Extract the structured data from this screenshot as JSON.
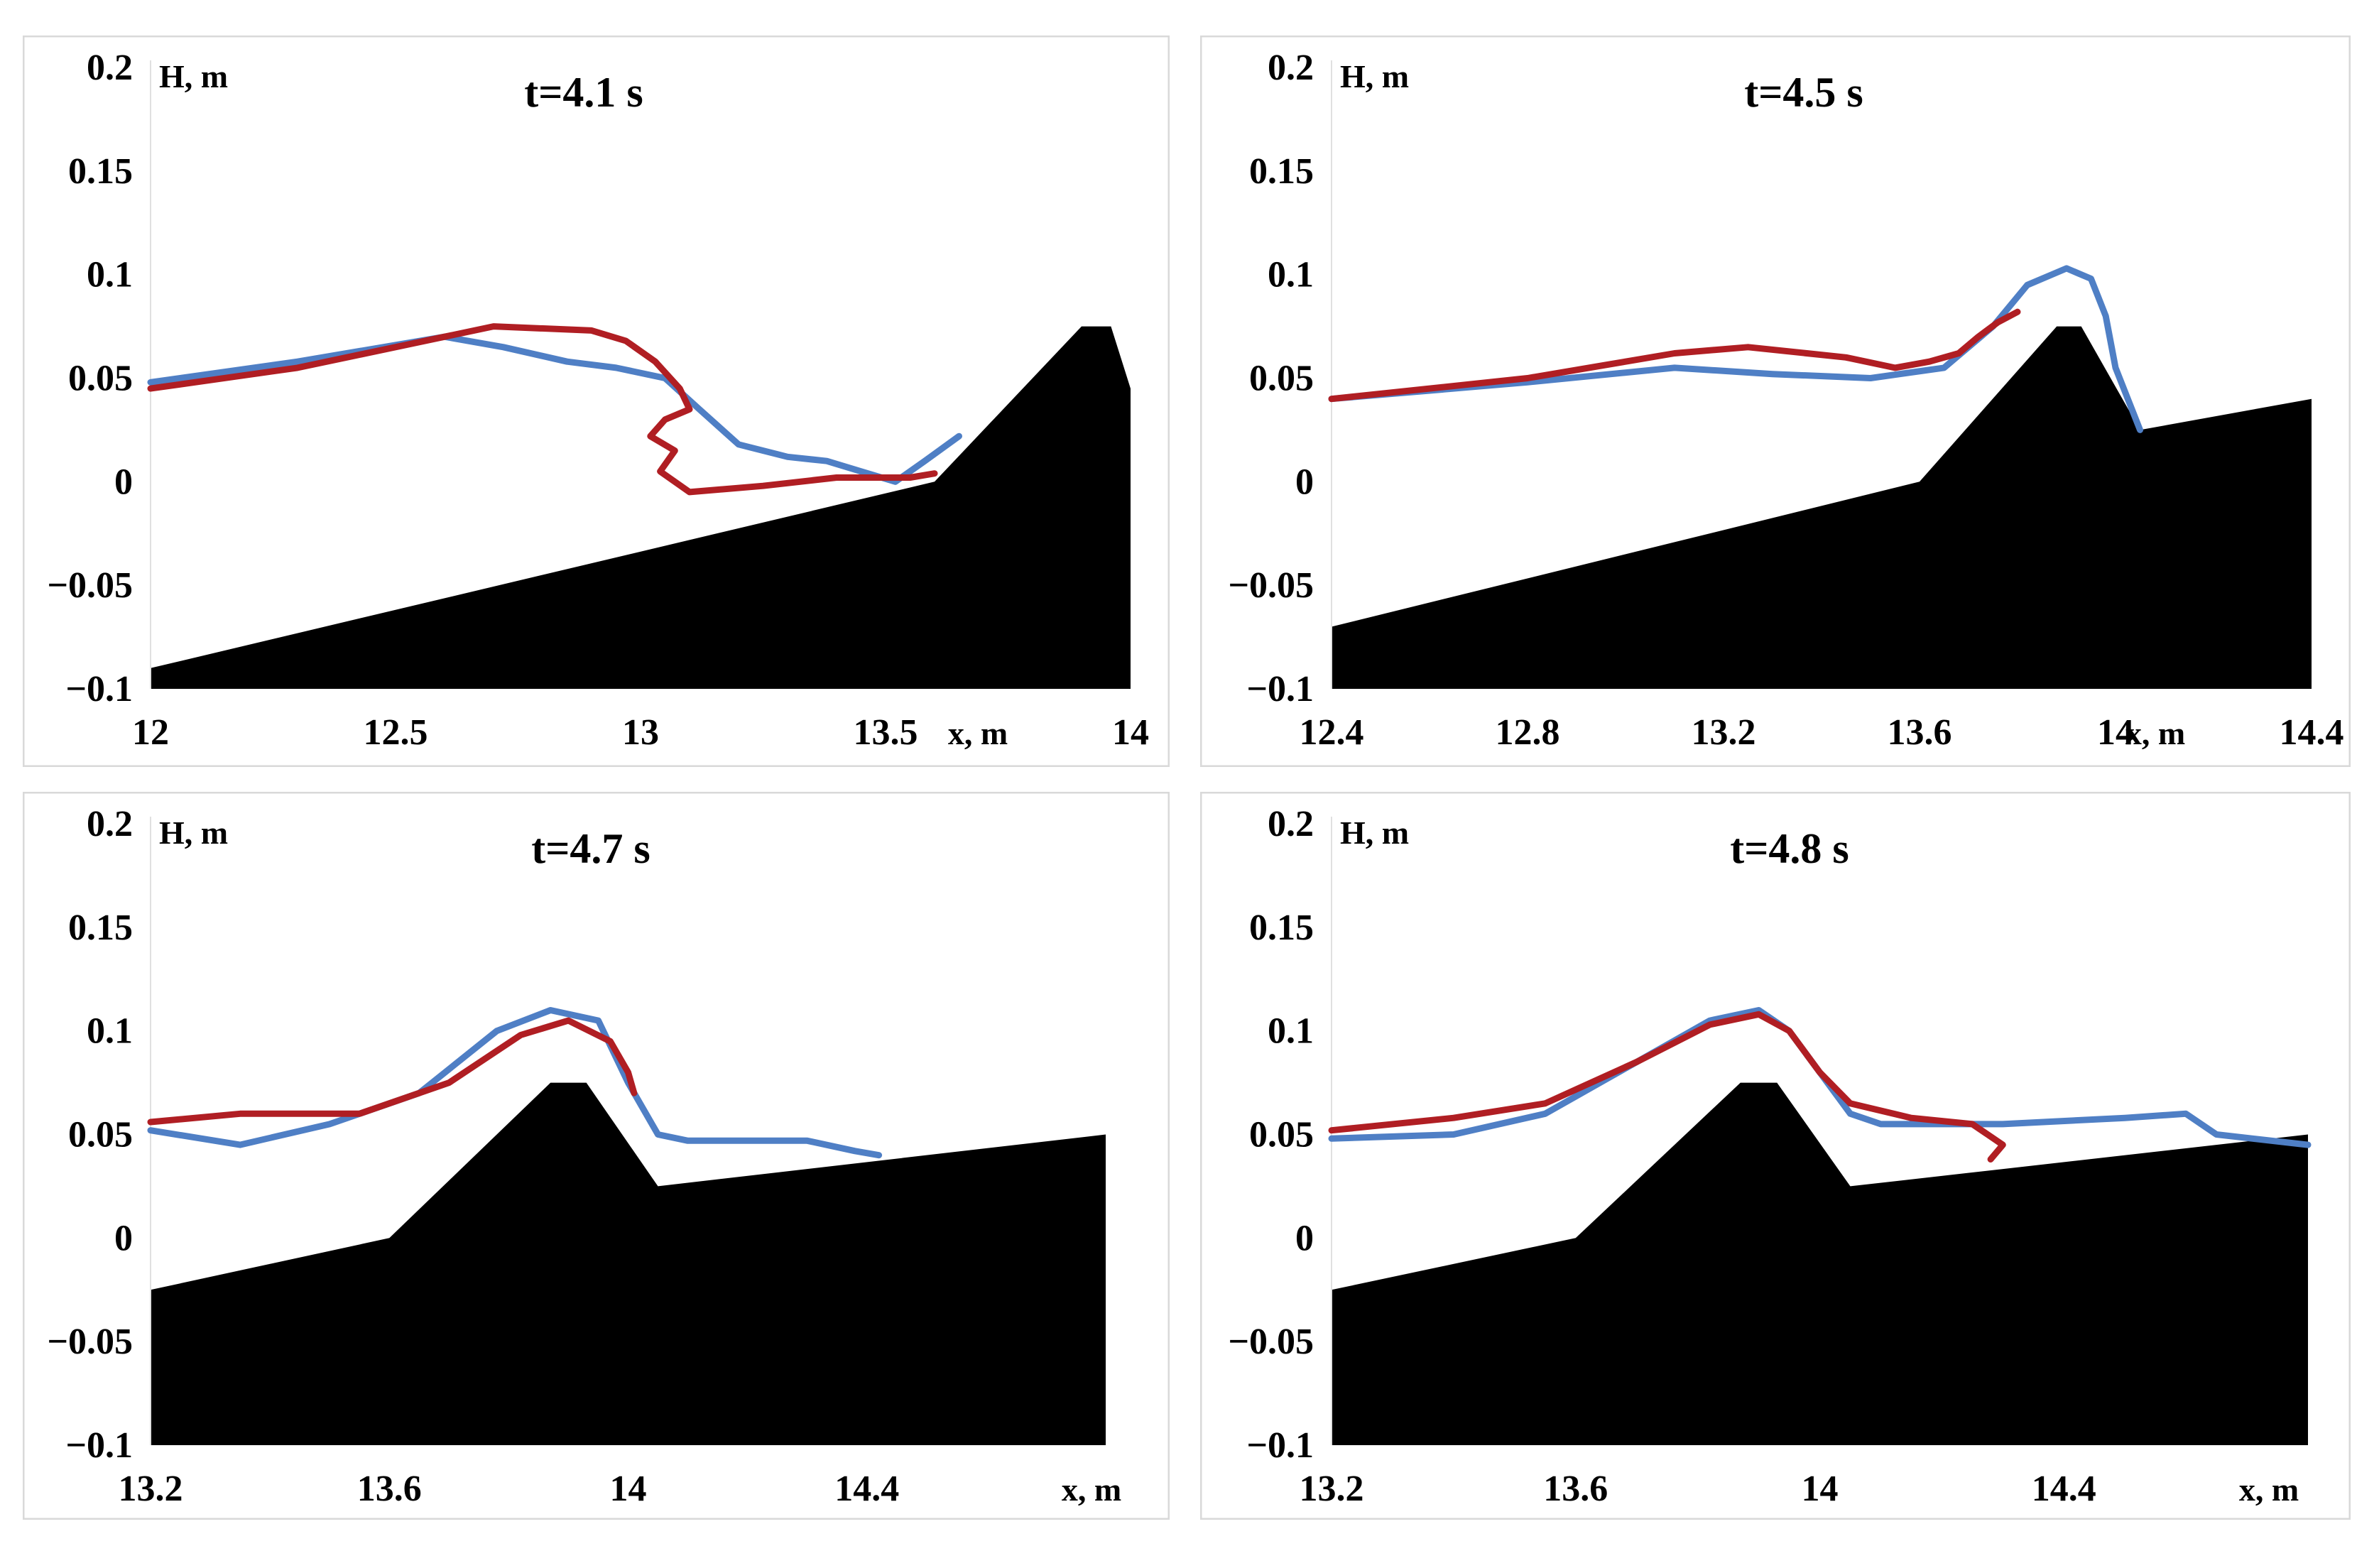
{
  "chart_data": [
    {
      "type": "line",
      "title": "t=4.1 s",
      "xlabel": "x, m",
      "ylabel": "H, m",
      "xlim": [
        12,
        14
      ],
      "ylim": [
        -0.1,
        0.2
      ],
      "xticks": [
        "12",
        "12.5",
        "13",
        "13.5",
        "14"
      ],
      "yticks": [
        "0.2",
        "0.15",
        "0.1",
        "0.05",
        "0",
        "−0.05",
        "−0.1"
      ],
      "colors": {
        "blue": "#4f7fc5",
        "red": "#b01e23",
        "bottom": "#000000"
      },
      "bottom": {
        "x": [
          12,
          13.6,
          13.9,
          13.96,
          14.0,
          14.0
        ],
        "y": [
          -0.09,
          0.0,
          0.075,
          0.075,
          0.045,
          -0.1
        ]
      },
      "series": [
        {
          "name": "blue",
          "color": "#4f7fc5",
          "x": [
            12,
            12.3,
            12.6,
            12.72,
            12.85,
            12.95,
            13.05,
            13.12,
            13.2,
            13.3,
            13.38,
            13.45,
            13.52,
            13.58,
            13.65
          ],
          "y": [
            0.048,
            0.058,
            0.07,
            0.065,
            0.058,
            0.055,
            0.05,
            0.035,
            0.018,
            0.012,
            0.01,
            0.005,
            0.0,
            0.01,
            0.022
          ]
        },
        {
          "name": "red",
          "color": "#b01e23",
          "x": [
            12,
            12.3,
            12.6,
            12.7,
            12.9,
            12.97,
            13.03,
            13.08,
            13.1,
            13.05,
            13.02,
            13.07,
            13.04,
            13.1,
            13.25,
            13.4,
            13.55,
            13.6
          ],
          "y": [
            0.045,
            0.055,
            0.07,
            0.075,
            0.073,
            0.068,
            0.058,
            0.045,
            0.035,
            0.03,
            0.022,
            0.015,
            0.005,
            -0.005,
            -0.002,
            0.002,
            0.002,
            0.004
          ]
        }
      ]
    },
    {
      "type": "line",
      "title": "t=4.5 s",
      "xlabel": "x, m",
      "ylabel": "H, m",
      "xlim": [
        12.4,
        14.4
      ],
      "ylim": [
        -0.1,
        0.2
      ],
      "xticks": [
        "12.4",
        "12.8",
        "13.2",
        "13.6",
        "14",
        "14.4"
      ],
      "yticks": [
        "0.2",
        "0.15",
        "0.1",
        "0.05",
        "0",
        "−0.05",
        "−0.1"
      ],
      "colors": {
        "blue": "#4f7fc5",
        "red": "#b01e23",
        "bottom": "#000000"
      },
      "bottom": {
        "x": [
          12.4,
          13.6,
          13.88,
          13.93,
          14.05,
          14.4,
          14.4
        ],
        "y": [
          -0.07,
          0.0,
          0.075,
          0.075,
          0.025,
          0.04,
          -0.1
        ]
      },
      "series": [
        {
          "name": "blue",
          "color": "#4f7fc5",
          "x": [
            12.4,
            12.8,
            13.1,
            13.3,
            13.5,
            13.65,
            13.75,
            13.82,
            13.9,
            13.95,
            13.98,
            14.0,
            14.05
          ],
          "y": [
            0.04,
            0.048,
            0.055,
            0.052,
            0.05,
            0.055,
            0.075,
            0.095,
            0.103,
            0.098,
            0.08,
            0.055,
            0.025
          ]
        },
        {
          "name": "red",
          "color": "#b01e23",
          "x": [
            12.4,
            12.8,
            13.1,
            13.25,
            13.45,
            13.55,
            13.62,
            13.68,
            13.72,
            13.76,
            13.8
          ],
          "y": [
            0.04,
            0.05,
            0.062,
            0.065,
            0.06,
            0.055,
            0.058,
            0.062,
            0.07,
            0.077,
            0.082
          ]
        }
      ]
    },
    {
      "type": "line",
      "title": "t=4.7 s",
      "xlabel": "x, m",
      "ylabel": "H, m",
      "xlim": [
        13.2,
        14.8
      ],
      "ylim": [
        -0.1,
        0.2
      ],
      "xticks": [
        "13.2",
        "13.6",
        "14",
        "14.4"
      ],
      "yticks": [
        "0.2",
        "0.15",
        "0.1",
        "0.05",
        "0",
        "−0.05",
        "−0.1"
      ],
      "colors": {
        "blue": "#4f7fc5",
        "red": "#b01e23",
        "bottom": "#000000"
      },
      "bottom": {
        "x": [
          13.2,
          13.6,
          13.87,
          13.93,
          14.05,
          14.8,
          14.8
        ],
        "y": [
          -0.025,
          0.0,
          0.075,
          0.075,
          0.025,
          0.05,
          -0.1
        ]
      },
      "series": [
        {
          "name": "blue",
          "color": "#4f7fc5",
          "x": [
            13.2,
            13.35,
            13.5,
            13.65,
            13.78,
            13.87,
            13.95,
            14.0,
            14.05,
            14.1,
            14.3,
            14.38,
            14.42
          ],
          "y": [
            0.052,
            0.045,
            0.055,
            0.07,
            0.1,
            0.11,
            0.105,
            0.075,
            0.05,
            0.047,
            0.047,
            0.042,
            0.04
          ]
        },
        {
          "name": "red",
          "color": "#b01e23",
          "x": [
            13.2,
            13.35,
            13.55,
            13.7,
            13.82,
            13.9,
            13.97,
            14.0,
            14.01
          ],
          "y": [
            0.056,
            0.06,
            0.06,
            0.075,
            0.098,
            0.105,
            0.095,
            0.08,
            0.07
          ]
        }
      ]
    },
    {
      "type": "line",
      "title": "t=4.8 s",
      "xlabel": "x, m",
      "ylabel": "H, m",
      "xlim": [
        13.2,
        14.8
      ],
      "ylim": [
        -0.1,
        0.2
      ],
      "xticks": [
        "13.2",
        "13.6",
        "14",
        "14.4"
      ],
      "yticks": [
        "0.2",
        "0.15",
        "0.1",
        "0.05",
        "0",
        "−0.05",
        "−0.1"
      ],
      "colors": {
        "blue": "#4f7fc5",
        "red": "#b01e23",
        "bottom": "#000000"
      },
      "bottom": {
        "x": [
          13.2,
          13.6,
          13.87,
          13.93,
          14.05,
          14.8,
          14.8
        ],
        "y": [
          -0.025,
          0.0,
          0.075,
          0.075,
          0.025,
          0.05,
          -0.1
        ]
      },
      "series": [
        {
          "name": "blue",
          "color": "#4f7fc5",
          "x": [
            13.2,
            13.4,
            13.55,
            13.7,
            13.82,
            13.9,
            13.95,
            14.0,
            14.05,
            14.1,
            14.3,
            14.5,
            14.6,
            14.65,
            14.8
          ],
          "y": [
            0.048,
            0.05,
            0.06,
            0.085,
            0.105,
            0.11,
            0.1,
            0.08,
            0.06,
            0.055,
            0.055,
            0.058,
            0.06,
            0.05,
            0.045
          ]
        },
        {
          "name": "red",
          "color": "#b01e23",
          "x": [
            13.2,
            13.4,
            13.55,
            13.7,
            13.82,
            13.9,
            13.95,
            14.0,
            14.05,
            14.15,
            14.25,
            14.3,
            14.28
          ],
          "y": [
            0.052,
            0.058,
            0.065,
            0.085,
            0.103,
            0.108,
            0.1,
            0.08,
            0.065,
            0.058,
            0.055,
            0.045,
            0.038
          ]
        }
      ]
    }
  ]
}
